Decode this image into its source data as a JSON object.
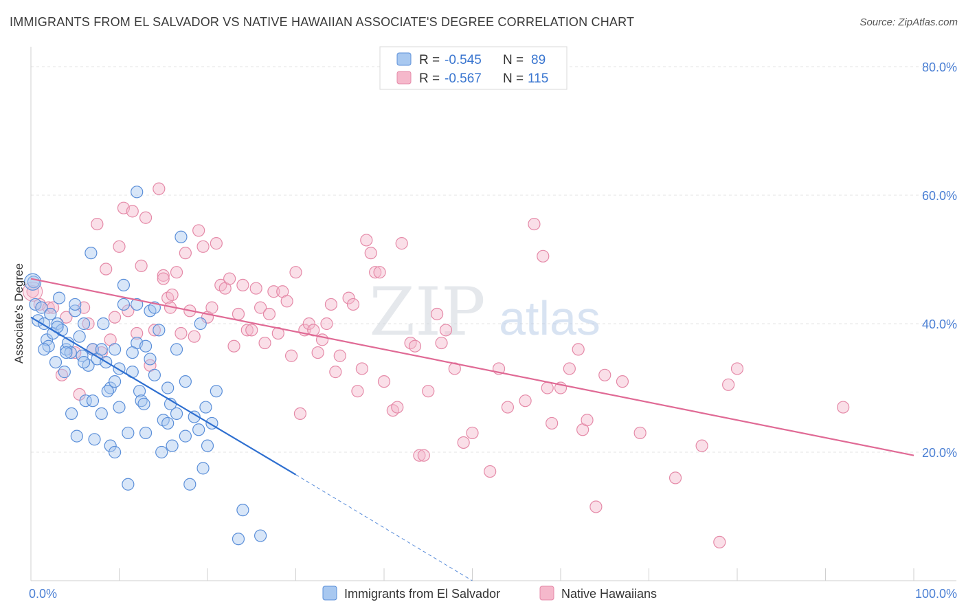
{
  "title": "IMMIGRANTS FROM EL SALVADOR VS NATIVE HAWAIIAN ASSOCIATE'S DEGREE CORRELATION CHART",
  "source": "Source: ZipAtlas.com",
  "watermark": {
    "zip": "ZIP",
    "atlas": "atlas"
  },
  "colors": {
    "blue_fill": "#a8c8f0",
    "blue_stroke": "#5b8fd9",
    "blue_line": "#2e6fd0",
    "pink_fill": "#f5b8cb",
    "pink_stroke": "#e58aa8",
    "pink_line": "#e06a95",
    "tick_label": "#4a7fd4",
    "grid": "#e3e3e3"
  },
  "legend": {
    "rows": [
      {
        "r_label": "R =",
        "r_value": "-0.545",
        "n_label": "N =",
        "n_value": "89"
      },
      {
        "r_label": "R =",
        "r_value": "-0.567",
        "n_label": "N =",
        "n_value": "115"
      }
    ]
  },
  "chart_data": {
    "type": "scatter",
    "title": "IMMIGRANTS FROM EL SALVADOR VS NATIVE HAWAIIAN ASSOCIATE'S DEGREE CORRELATION CHART",
    "xlabel": "",
    "ylabel": "Associate's Degree",
    "xlim": [
      0,
      100
    ],
    "ylim": [
      0,
      80
    ],
    "x_ticks_labels": [
      "0.0%",
      "100.0%"
    ],
    "y_ticks": [
      20,
      40,
      60,
      80
    ],
    "y_ticks_labels": [
      "20.0%",
      "40.0%",
      "60.0%",
      "80.0%"
    ],
    "grid": true,
    "legend_position": "top-center",
    "series": [
      {
        "name": "Immigrants from El Salvador",
        "color": "#a8c8f0",
        "r": -0.545,
        "n": 89,
        "trend": {
          "x0": 0,
          "y0": 41,
          "x1": 30,
          "y1": 16.5,
          "dashed_to_x": 50,
          "dashed_to_y": 0
        },
        "points": [
          [
            0.3,
            46.5
          ],
          [
            0.5,
            43
          ],
          [
            0.8,
            40.5
          ],
          [
            1.2,
            42.5
          ],
          [
            1.5,
            40
          ],
          [
            1.8,
            37.5
          ],
          [
            2,
            36.5
          ],
          [
            2.5,
            38.5
          ],
          [
            2.8,
            34
          ],
          [
            3,
            40
          ],
          [
            3.2,
            44
          ],
          [
            3.5,
            39
          ],
          [
            3.8,
            32.5
          ],
          [
            4,
            36
          ],
          [
            4.2,
            37
          ],
          [
            4.5,
            35.5
          ],
          [
            5,
            42
          ],
          [
            5,
            43
          ],
          [
            4.6,
            26
          ],
          [
            5.5,
            38
          ],
          [
            5.2,
            22.5
          ],
          [
            5.8,
            35
          ],
          [
            6,
            40
          ],
          [
            6.2,
            28
          ],
          [
            6.5,
            33.5
          ],
          [
            6.8,
            51
          ],
          [
            7,
            36
          ],
          [
            7,
            28
          ],
          [
            7.5,
            34.5
          ],
          [
            7.2,
            22
          ],
          [
            8,
            36
          ],
          [
            8,
            26
          ],
          [
            8.2,
            40
          ],
          [
            8.5,
            34
          ],
          [
            9,
            30
          ],
          [
            9,
            21
          ],
          [
            9.5,
            36
          ],
          [
            9.5,
            31
          ],
          [
            10,
            33
          ],
          [
            10,
            27
          ],
          [
            10.5,
            46
          ],
          [
            10.5,
            43
          ],
          [
            11,
            23
          ],
          [
            11,
            15
          ],
          [
            11.5,
            32.5
          ],
          [
            12,
            37
          ],
          [
            12,
            43
          ],
          [
            12.3,
            29.5
          ],
          [
            12.5,
            28
          ],
          [
            12.8,
            27.5
          ],
          [
            13,
            23
          ],
          [
            13,
            36.5
          ],
          [
            13.5,
            34.5
          ],
          [
            13.5,
            42
          ],
          [
            14,
            32
          ],
          [
            14,
            42.5
          ],
          [
            14.5,
            39
          ],
          [
            14.8,
            20
          ],
          [
            15,
            25
          ],
          [
            15.5,
            24.5
          ],
          [
            15.5,
            30
          ],
          [
            15.8,
            27.5
          ],
          [
            16,
            21
          ],
          [
            16.5,
            26
          ],
          [
            16.5,
            36
          ],
          [
            17,
            53.5
          ],
          [
            17.5,
            31
          ],
          [
            17.5,
            22.5
          ],
          [
            18,
            15
          ],
          [
            18.5,
            25.5
          ],
          [
            19,
            23.5
          ],
          [
            19.2,
            40
          ],
          [
            19.5,
            17.5
          ],
          [
            19.8,
            27
          ],
          [
            20,
            21
          ],
          [
            20.5,
            24.5
          ],
          [
            21,
            29.5
          ],
          [
            23.5,
            6.5
          ],
          [
            24,
            11
          ],
          [
            26,
            7
          ],
          [
            12,
            60.5
          ],
          [
            9.5,
            20
          ],
          [
            4,
            35.5
          ],
          [
            3,
            39.5
          ],
          [
            1.5,
            36
          ],
          [
            2.2,
            41.5
          ],
          [
            6,
            34
          ],
          [
            8.7,
            29.5
          ],
          [
            11.5,
            35.5
          ]
        ]
      },
      {
        "name": "Native Hawaiians",
        "color": "#f5b8cb",
        "r": -0.567,
        "n": 115,
        "trend": {
          "x0": 0,
          "y0": 47,
          "x1": 100,
          "y1": 19.5
        },
        "points": [
          [
            0.2,
            45
          ],
          [
            1,
            43
          ],
          [
            2,
            42.5
          ],
          [
            3.5,
            32
          ],
          [
            4,
            41
          ],
          [
            5,
            35.5
          ],
          [
            5.5,
            29
          ],
          [
            6,
            42.5
          ],
          [
            6.5,
            40
          ],
          [
            7,
            36
          ],
          [
            7.5,
            55.5
          ],
          [
            8,
            35.5
          ],
          [
            8.5,
            48.5
          ],
          [
            9,
            37.5
          ],
          [
            9.5,
            41
          ],
          [
            10,
            52
          ],
          [
            10.5,
            58
          ],
          [
            11,
            42
          ],
          [
            11.5,
            57.5
          ],
          [
            12,
            38.5
          ],
          [
            12.5,
            49
          ],
          [
            13,
            56.5
          ],
          [
            13.5,
            33.5
          ],
          [
            14,
            39
          ],
          [
            14.5,
            61
          ],
          [
            15,
            47.5
          ],
          [
            15.5,
            44
          ],
          [
            15.8,
            42.5
          ],
          [
            16,
            44.5
          ],
          [
            16.5,
            48
          ],
          [
            17,
            38.5
          ],
          [
            17.5,
            51
          ],
          [
            18,
            42
          ],
          [
            18.5,
            38
          ],
          [
            19,
            54.5
          ],
          [
            19.5,
            52
          ],
          [
            20,
            41
          ],
          [
            20.5,
            42.5
          ],
          [
            21,
            52.5
          ],
          [
            21.5,
            46
          ],
          [
            22,
            45.5
          ],
          [
            22.5,
            47
          ],
          [
            23,
            36.5
          ],
          [
            23.5,
            41.5
          ],
          [
            24,
            46
          ],
          [
            24.5,
            39
          ],
          [
            25,
            39
          ],
          [
            25.5,
            45.5
          ],
          [
            26,
            42.5
          ],
          [
            26.5,
            37
          ],
          [
            27,
            41.5
          ],
          [
            27.5,
            45
          ],
          [
            28,
            38.5
          ],
          [
            28.5,
            45
          ],
          [
            29,
            43.5
          ],
          [
            29.5,
            35
          ],
          [
            30,
            48
          ],
          [
            31,
            39
          ],
          [
            31.5,
            40
          ],
          [
            32,
            39
          ],
          [
            32.5,
            35.5
          ],
          [
            33,
            37.5
          ],
          [
            34,
            43
          ],
          [
            34.5,
            32.5
          ],
          [
            35,
            35
          ],
          [
            36,
            44
          ],
          [
            36.5,
            43
          ],
          [
            37,
            29.5
          ],
          [
            38,
            53
          ],
          [
            38.5,
            51
          ],
          [
            39,
            48
          ],
          [
            39.5,
            48
          ],
          [
            40,
            31
          ],
          [
            41,
            26.5
          ],
          [
            41.5,
            27
          ],
          [
            42,
            52.5
          ],
          [
            43,
            37
          ],
          [
            43.5,
            36.5
          ],
          [
            44,
            19.5
          ],
          [
            44.5,
            19.5
          ],
          [
            45,
            29.5
          ],
          [
            46,
            41.5
          ],
          [
            46.5,
            37
          ],
          [
            47,
            39
          ],
          [
            48,
            33
          ],
          [
            49,
            21.5
          ],
          [
            50,
            23
          ],
          [
            52,
            17
          ],
          [
            53,
            33
          ],
          [
            54,
            27
          ],
          [
            56,
            28
          ],
          [
            57,
            55.5
          ],
          [
            58,
            50.5
          ],
          [
            59,
            24.5
          ],
          [
            60,
            30
          ],
          [
            61,
            33
          ],
          [
            62,
            36
          ],
          [
            62.5,
            23.5
          ],
          [
            63,
            25
          ],
          [
            64,
            11.5
          ],
          [
            65,
            32
          ],
          [
            67,
            31
          ],
          [
            69,
            23
          ],
          [
            73,
            16
          ],
          [
            76,
            21
          ],
          [
            78,
            6
          ],
          [
            79,
            30.5
          ],
          [
            80,
            33
          ],
          [
            92,
            27
          ],
          [
            58.5,
            30
          ],
          [
            30.5,
            26
          ],
          [
            37.5,
            33
          ],
          [
            33.5,
            40
          ],
          [
            15,
            47
          ],
          [
            2.5,
            42.5
          ]
        ]
      }
    ]
  },
  "bottom_legend": [
    {
      "label": "Immigrants from El Salvador"
    },
    {
      "label": "Native Hawaiians"
    }
  ]
}
